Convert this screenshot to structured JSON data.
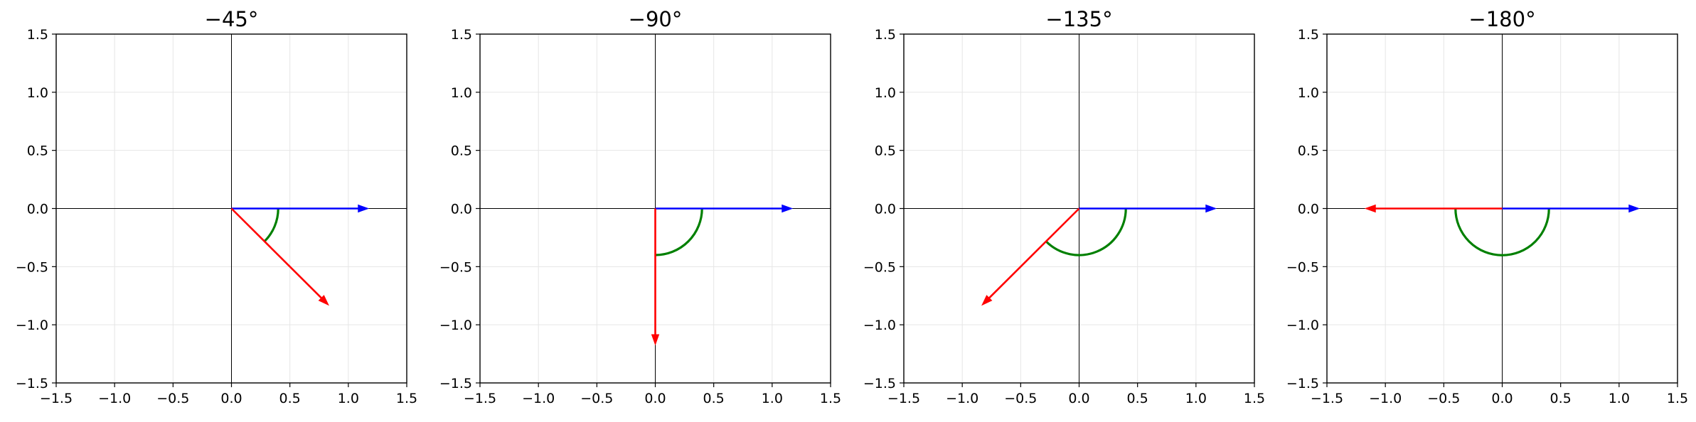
{
  "chart_data": [
    {
      "type": "vector",
      "title": "−45°",
      "angle_deg": -45,
      "xlim": [
        -1.5,
        1.5
      ],
      "ylim": [
        -1.5,
        1.5
      ],
      "xticks": [
        "−1.5",
        "−1.0",
        "−0.5",
        "0.0",
        "0.5",
        "1.0",
        "1.5"
      ],
      "yticks": [
        "−1.5",
        "−1.0",
        "−0.5",
        "0.0",
        "0.5",
        "1.0",
        "1.5"
      ],
      "reference_vector": {
        "x": 1.17,
        "y": 0.0,
        "color": "#0000ff"
      },
      "rotated_vector": {
        "x": 0.83,
        "y": -0.83,
        "color": "#ff0000"
      },
      "angle_arc": {
        "radius": 0.4,
        "color": "#008000"
      },
      "grid": true
    },
    {
      "type": "vector",
      "title": "−90°",
      "angle_deg": -90,
      "xlim": [
        -1.5,
        1.5
      ],
      "ylim": [
        -1.5,
        1.5
      ],
      "xticks": [
        "−1.5",
        "−1.0",
        "−0.5",
        "0.0",
        "0.5",
        "1.0",
        "1.5"
      ],
      "yticks": [
        "−1.5",
        "−1.0",
        "−0.5",
        "0.0",
        "0.5",
        "1.0",
        "1.5"
      ],
      "reference_vector": {
        "x": 1.17,
        "y": 0.0,
        "color": "#0000ff"
      },
      "rotated_vector": {
        "x": 0.0,
        "y": -1.17,
        "color": "#ff0000"
      },
      "angle_arc": {
        "radius": 0.4,
        "color": "#008000"
      },
      "grid": true
    },
    {
      "type": "vector",
      "title": "−135°",
      "angle_deg": -135,
      "xlim": [
        -1.5,
        1.5
      ],
      "ylim": [
        -1.5,
        1.5
      ],
      "xticks": [
        "−1.5",
        "−1.0",
        "−0.5",
        "0.0",
        "0.5",
        "1.0",
        "1.5"
      ],
      "yticks": [
        "−1.5",
        "−1.0",
        "−0.5",
        "0.0",
        "0.5",
        "1.0",
        "1.5"
      ],
      "reference_vector": {
        "x": 1.17,
        "y": 0.0,
        "color": "#0000ff"
      },
      "rotated_vector": {
        "x": -0.83,
        "y": -0.83,
        "color": "#ff0000"
      },
      "angle_arc": {
        "radius": 0.4,
        "color": "#008000"
      },
      "grid": true
    },
    {
      "type": "vector",
      "title": "−180°",
      "angle_deg": -180,
      "xlim": [
        -1.5,
        1.5
      ],
      "ylim": [
        -1.5,
        1.5
      ],
      "xticks": [
        "−1.5",
        "−1.0",
        "−0.5",
        "0.0",
        "0.5",
        "1.0",
        "1.5"
      ],
      "yticks": [
        "−1.5",
        "−1.0",
        "−0.5",
        "0.0",
        "0.5",
        "1.0",
        "1.5"
      ],
      "reference_vector": {
        "x": 1.17,
        "y": 0.0,
        "color": "#0000ff"
      },
      "rotated_vector": {
        "x": -1.17,
        "y": 0.0,
        "color": "#ff0000"
      },
      "angle_arc": {
        "radius": 0.4,
        "color": "#008000"
      },
      "grid": true
    }
  ]
}
